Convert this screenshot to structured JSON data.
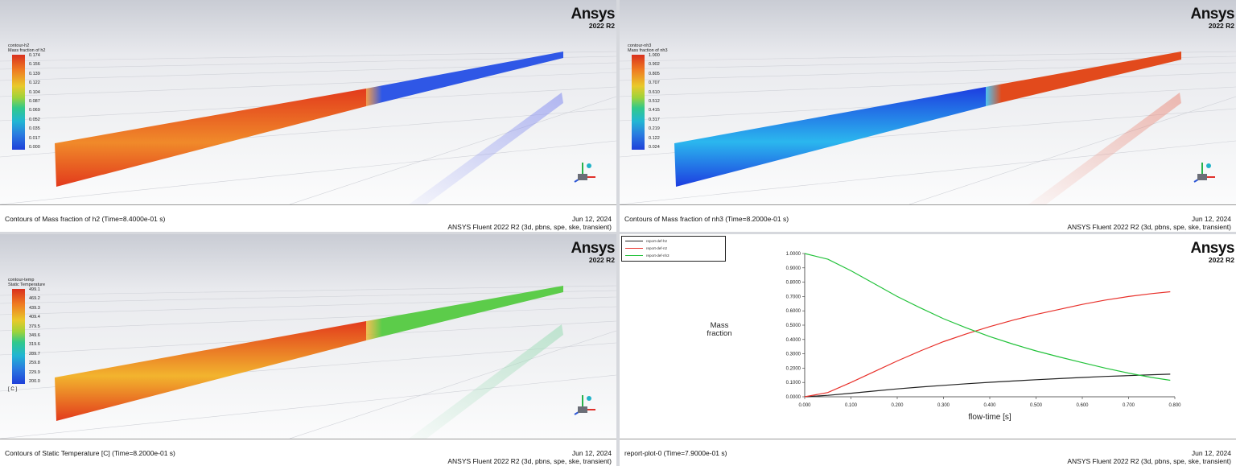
{
  "brand": {
    "logo": "Ansys",
    "release": "2022 R2"
  },
  "panes": [
    {
      "legend_title": [
        "contour-h2",
        "Mass fraction of h2"
      ],
      "ticks": [
        "0.174",
        "0.156",
        "0.139",
        "0.122",
        "0.104",
        "0.087",
        "0.069",
        "0.052",
        "0.035",
        "0.017",
        "0.000"
      ],
      "unit": "",
      "caption": "Contours of Mass fraction of h2  (Time=8.4000e-01 s)",
      "date": "Jun 12, 2024",
      "version": "ANSYS Fluent 2022 R2 (3d, pbns, spe, ske, transient)",
      "colors": {
        "inlet": "#e23a1c",
        "outlet": "#2f57e6",
        "glow": "#f08a2a",
        "ghost": "#7f88f0"
      }
    },
    {
      "legend_title": [
        "contour-nh3",
        "Mass fraction of nh3"
      ],
      "ticks": [
        "1.000",
        "0.902",
        "0.805",
        "0.707",
        "0.610",
        "0.512",
        "0.415",
        "0.317",
        "0.219",
        "0.122",
        "0.024"
      ],
      "unit": "",
      "caption": "Contours of Mass fraction of nh3  (Time=8.2000e-01 s)",
      "date": "Jun 12, 2024",
      "version": "ANSYS Fluent 2022 R2 (3d, pbns, spe, ske, transient)",
      "colors": {
        "inlet": "#1d3de0",
        "outlet": "#e24a1c",
        "glow": "#2bb7ee",
        "ghost": "#eb8a7a"
      }
    },
    {
      "legend_title": [
        "contour-temp",
        "Static Temperature"
      ],
      "ticks": [
        "499.1",
        "469.2",
        "439.3",
        "409.4",
        "379.5",
        "349.6",
        "319.6",
        "289.7",
        "259.8",
        "229.9",
        "200.0"
      ],
      "unit": "[ C ]",
      "caption": "Contours of Static Temperature [C]  (Time=8.2000e-01 s)",
      "date": "Jun 12, 2024",
      "version": "ANSYS Fluent 2022 R2 (3d, pbns, spe, ske, transient)",
      "colors": {
        "inlet": "#e23a1c",
        "outlet": "#5ccc4a",
        "glow": "#f2b42e",
        "ghost": "#9fdcb8"
      }
    }
  ],
  "plot": {
    "caption": "report-plot-0  (Time=7.9000e-01 s)",
    "date": "Jun 12, 2024",
    "version": "ANSYS Fluent 2022 R2 (3d, pbns, spe, ske, transient)",
    "legend": [
      {
        "name": "report-def-h2",
        "color": "#222222"
      },
      {
        "name": "report-def-n2",
        "color": "#e8302a"
      },
      {
        "name": "report-def-nh3",
        "color": "#22c23a"
      }
    ]
  },
  "chart_data": {
    "type": "line",
    "title": "",
    "xlabel": "flow-time [s]",
    "ylabel": "Mass\nfraction",
    "xlim": [
      0,
      0.8
    ],
    "ylim": [
      0,
      1
    ],
    "xticks": [
      "0.000",
      "0.100",
      "0.200",
      "0.300",
      "0.400",
      "0.500",
      "0.600",
      "0.700",
      "0.800"
    ],
    "yticks": [
      "0.0000",
      "0.1000",
      "0.2000",
      "0.3000",
      "0.4000",
      "0.5000",
      "0.6000",
      "0.7000",
      "0.8000",
      "0.9000",
      "1.0000"
    ],
    "grid": false,
    "legend_position": "top-left",
    "series": [
      {
        "name": "report-def-h2",
        "color": "#222222",
        "x": [
          0,
          0.05,
          0.1,
          0.15,
          0.2,
          0.25,
          0.3,
          0.35,
          0.4,
          0.45,
          0.5,
          0.55,
          0.6,
          0.65,
          0.7,
          0.75,
          0.79
        ],
        "y": [
          0,
          0.01,
          0.025,
          0.04,
          0.055,
          0.068,
          0.08,
          0.091,
          0.101,
          0.11,
          0.119,
          0.127,
          0.135,
          0.142,
          0.148,
          0.154,
          0.158
        ]
      },
      {
        "name": "report-def-n2",
        "color": "#e8302a",
        "x": [
          0,
          0.05,
          0.1,
          0.15,
          0.2,
          0.25,
          0.3,
          0.35,
          0.4,
          0.45,
          0.5,
          0.55,
          0.6,
          0.65,
          0.7,
          0.75,
          0.79
        ],
        "y": [
          0,
          0.03,
          0.1,
          0.175,
          0.25,
          0.32,
          0.385,
          0.44,
          0.49,
          0.535,
          0.575,
          0.61,
          0.645,
          0.675,
          0.7,
          0.72,
          0.733
        ]
      },
      {
        "name": "report-def-nh3",
        "color": "#22c23a",
        "x": [
          0,
          0.05,
          0.1,
          0.15,
          0.2,
          0.25,
          0.3,
          0.35,
          0.4,
          0.45,
          0.5,
          0.55,
          0.6,
          0.65,
          0.7,
          0.75,
          0.79
        ],
        "y": [
          1.0,
          0.96,
          0.88,
          0.79,
          0.7,
          0.62,
          0.545,
          0.48,
          0.42,
          0.368,
          0.32,
          0.278,
          0.238,
          0.2,
          0.165,
          0.135,
          0.115
        ]
      }
    ]
  }
}
